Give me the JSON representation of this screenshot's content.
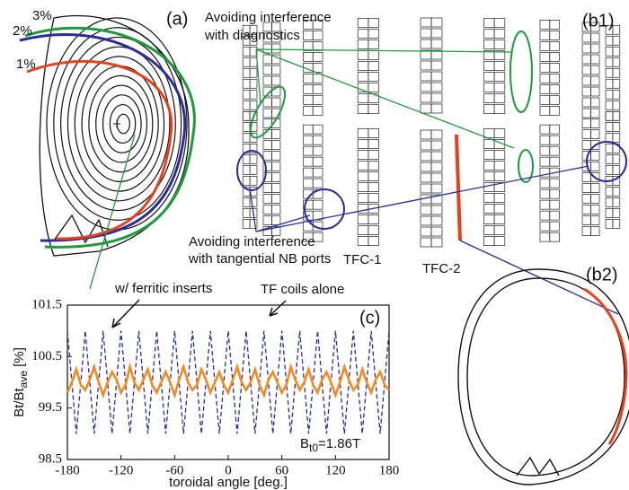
{
  "panel_a": {
    "label": "(a)",
    "levels": [
      {
        "label": "3%",
        "color": "#1e9a3c"
      },
      {
        "label": "2%",
        "color": "#2b2b9a"
      },
      {
        "label": "1%",
        "color": "#e8401c"
      }
    ]
  },
  "panel_b1": {
    "label": "(b1)",
    "note_diagnostics": [
      "Avoiding interference",
      "with diagnostics"
    ],
    "note_nb": [
      "Avoiding interference",
      "with tangential NB ports"
    ],
    "coil_labels": [
      "TFC-1",
      "TFC-2"
    ]
  },
  "panel_b2": {
    "label": "(b2)"
  },
  "chart_data": {
    "type": "line",
    "panel_label": "(c)",
    "field_label": [
      "B",
      "t0",
      "=1.86T"
    ],
    "y_label": [
      "Bt/Bt",
      "ave",
      " [%]"
    ],
    "x_label": "toroidal angle [deg.]",
    "x": [
      -180,
      -175,
      -170,
      -165,
      -160,
      -155,
      -150,
      -145,
      -140,
      -135,
      -130,
      -125,
      -120,
      -115,
      -110,
      -105,
      -100,
      -95,
      -90,
      -85,
      -80,
      -75,
      -70,
      -65,
      -60,
      -55,
      -50,
      -45,
      -40,
      -35,
      -30,
      -25,
      -20,
      -15,
      -10,
      -5,
      0,
      5,
      10,
      15,
      20,
      25,
      30,
      35,
      40,
      45,
      50,
      55,
      60,
      65,
      70,
      75,
      80,
      85,
      90,
      95,
      100,
      105,
      110,
      115,
      120,
      125,
      130,
      135,
      140,
      145,
      150,
      155,
      160,
      165,
      170,
      175,
      180
    ],
    "xlim": [
      -180,
      180
    ],
    "xticks": [
      -180,
      -120,
      -60,
      0,
      60,
      120,
      180
    ],
    "ylim": [
      98.5,
      101.5
    ],
    "yticks": [
      98.5,
      99.5,
      100.5,
      101.5
    ],
    "series": [
      {
        "name": "TF coils alone",
        "color": "#2b2ba0",
        "dashed": true,
        "values": [
          101,
          100,
          99,
          100,
          101,
          100,
          99,
          100,
          101,
          100,
          99,
          100,
          101,
          100,
          99,
          100,
          101,
          100,
          99,
          100,
          101,
          100,
          99,
          100,
          101,
          100,
          99,
          100,
          101,
          100,
          99,
          100,
          101,
          100,
          99,
          100,
          101,
          100,
          99,
          100,
          101,
          100,
          99,
          100,
          101,
          100,
          99,
          100,
          101,
          100,
          99,
          100,
          101,
          100,
          99,
          100,
          101,
          100,
          99,
          100,
          101,
          100,
          99,
          100,
          101,
          100,
          99,
          100,
          101,
          100,
          99,
          100,
          101
        ]
      },
      {
        "name": "w/ ferritic inserts",
        "color": "#f28a1e",
        "dashed": false,
        "values": [
          99.8,
          100.0,
          100.25,
          99.95,
          99.85,
          100.05,
          100.3,
          100.0,
          99.75,
          100.0,
          100.2,
          100.05,
          99.8,
          99.95,
          100.3,
          100.0,
          99.85,
          100.05,
          100.25,
          99.95,
          99.8,
          100.0,
          100.2,
          100.0,
          99.75,
          100.05,
          100.3,
          100.0,
          99.85,
          99.95,
          100.25,
          100.05,
          99.8,
          100.0,
          100.2,
          99.95,
          99.8,
          100.05,
          100.3,
          100.0,
          99.85,
          100.0,
          100.25,
          99.95,
          99.75,
          100.05,
          100.2,
          100.0,
          99.8,
          99.95,
          100.3,
          100.05,
          99.85,
          100.0,
          100.25,
          99.95,
          99.8,
          100.05,
          100.2,
          100.0,
          99.75,
          100.0,
          100.3,
          100.05,
          99.85,
          99.95,
          100.25,
          100.0,
          99.8,
          100.05,
          100.2,
          99.95,
          99.85
        ]
      }
    ]
  }
}
